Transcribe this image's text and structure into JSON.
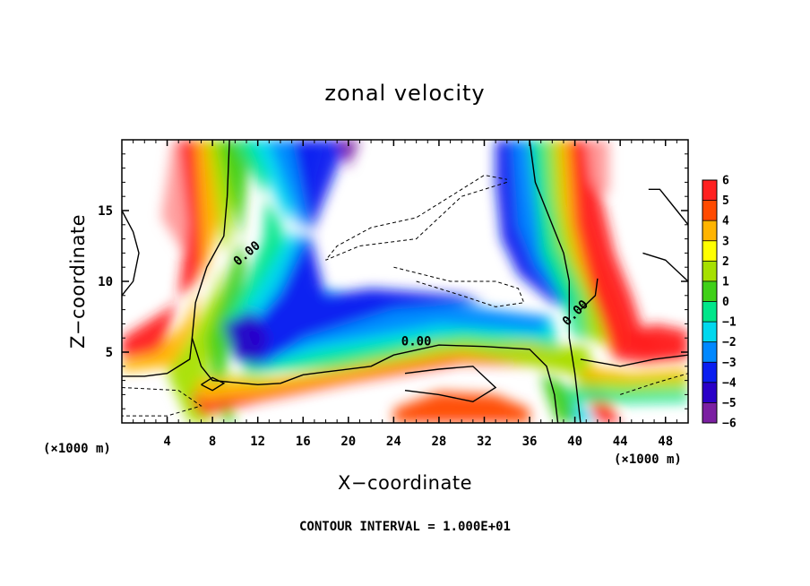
{
  "chart_data": {
    "type": "heatmap",
    "title": "zonal velocity",
    "xlabel": "X−coordinate",
    "ylabel": "Z−coordinate",
    "x_unit_left": "(×1000 m)",
    "x_unit_right": "(×1000 m)",
    "xlim": [
      0,
      50
    ],
    "ylim": [
      0,
      20
    ],
    "x_ticks": [
      4,
      8,
      12,
      16,
      20,
      24,
      28,
      32,
      36,
      40,
      44,
      48
    ],
    "y_ticks": [
      5,
      10,
      15
    ],
    "colorbar": {
      "min": -6,
      "max": 6,
      "tick_values": [
        6,
        5,
        4,
        3,
        2,
        1,
        0,
        -1,
        -2,
        -3,
        -4,
        -5,
        -6
      ],
      "tick_labels": [
        "6",
        "5",
        "4",
        "3",
        "2",
        "1",
        "0",
        "−1",
        "−2",
        "−3",
        "−4",
        "−5",
        "−6"
      ]
    },
    "contour_labels": [
      {
        "text": "0.00",
        "x": 11,
        "y": 12
      },
      {
        "text": "0.00",
        "x": 26,
        "y": 5.8
      },
      {
        "text": "0.00",
        "x": 40,
        "y": 7.8
      }
    ],
    "footer": "CONTOUR INTERVAL = 1.000E+01"
  }
}
